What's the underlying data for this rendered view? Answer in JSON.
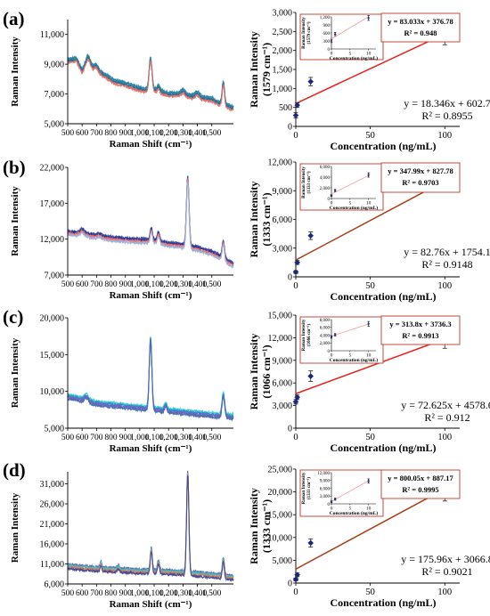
{
  "panels": [
    {
      "id": "(a)"
    },
    {
      "id": "(b)"
    },
    {
      "id": "(c)"
    },
    {
      "id": "(d)"
    }
  ],
  "colors": {
    "line_ac": "#e8231d",
    "line_bd": "#a6401a",
    "inset_line": "#f0a8a8",
    "inset_box": "#c0392b",
    "marker": "#1a2a7a",
    "spectra_a": [
      "#2a8a9e",
      "#3a7fb5",
      "#1f6f8f",
      "#e8716b"
    ],
    "spectra_b": [
      "#3b4ea8",
      "#2a3590",
      "#ef6e6a",
      "#9fb0d6"
    ],
    "spectra_c": [
      "#3fd3c8",
      "#2a8fd8",
      "#7b5fc0",
      "#4b6fb0"
    ],
    "spectra_d": [
      "#5e6fb0",
      "#3fc0c0",
      "#d08060",
      "#4b4b90"
    ]
  },
  "chart_data": [
    {
      "panel": "(a)",
      "type": "line",
      "xlabel": "Raman Shift (cm⁻¹)",
      "ylabel": "Raman Intensity",
      "xlim": [
        500,
        1650
      ],
      "ylim": [
        5000,
        12000
      ],
      "xticks": [
        "500",
        "600",
        "700",
        "800",
        "900",
        "1,000",
        "1,100",
        "1,200",
        "1,300",
        "1,400",
        "1,500"
      ],
      "yticks": [
        "5,000",
        "7,000",
        "9,000",
        "11,000"
      ],
      "base": [
        [
          500,
          9200
        ],
        [
          560,
          9300
        ],
        [
          600,
          8500
        ],
        [
          640,
          9050
        ],
        [
          700,
          8500
        ],
        [
          760,
          8200
        ],
        [
          820,
          7800
        ],
        [
          900,
          7600
        ],
        [
          1000,
          7300
        ],
        [
          1050,
          7200
        ],
        [
          1100,
          7200
        ],
        [
          1200,
          6950
        ],
        [
          1300,
          6900
        ],
        [
          1400,
          6700
        ],
        [
          1500,
          6600
        ],
        [
          1560,
          6300
        ],
        [
          1650,
          6000
        ]
      ],
      "peaks": [
        [
          1075,
          2100,
          10
        ],
        [
          1580,
          1500,
          8
        ],
        [
          1130,
          300,
          10
        ],
        [
          1300,
          250,
          15
        ],
        [
          1400,
          300,
          15
        ],
        [
          640,
          400,
          15
        ],
        [
          700,
          350,
          12
        ]
      ]
    },
    {
      "panel": "(a)",
      "type": "scatter",
      "xlabel": "Concentration (ng/mL)",
      "ylabel": "Raman Intensity (1579 cm⁻¹)",
      "xlim": [
        0,
        110
      ],
      "ylim": [
        0,
        3000
      ],
      "xticks": [
        "0",
        "50",
        "100"
      ],
      "yticks": [
        "0",
        "500",
        "1,000",
        "1,500",
        "2,000",
        "2,500",
        "3,000"
      ],
      "points": [
        [
          0,
          290
        ],
        [
          1,
          560
        ],
        [
          10,
          1180
        ],
        [
          100,
          2430
        ]
      ],
      "errors": [
        70,
        60,
        110,
        280
      ],
      "fit": {
        "slope": 18.346,
        "intercept": 602.7
      },
      "equation": "y = 18.346x + 602.7",
      "r2": "R² = 0.8955",
      "inset": {
        "xlim": [
          0,
          12
        ],
        "ylim": [
          0,
          1200
        ],
        "xticks": [
          "0",
          "5",
          "10"
        ],
        "yticks": [
          "0",
          "300",
          "600",
          "900",
          "1,200"
        ],
        "ylabel": "Raman Intensity (1579 cm⁻¹)",
        "xlabel": "Concentration (ng/mL)",
        "points": [
          [
            0,
            300
          ],
          [
            1,
            560
          ],
          [
            10,
            1160
          ]
        ],
        "errors": [
          60,
          60,
          90
        ],
        "fit": {
          "slope": 83.033,
          "intercept": 376.78
        },
        "equation": "y = 83.033x + 376.78",
        "r2": "R² = 0.948"
      }
    },
    {
      "panel": "(b)",
      "type": "line",
      "xlabel": "Raman Shift (cm⁻¹)",
      "ylabel": "Raman Intensity",
      "xlim": [
        500,
        1650
      ],
      "ylim": [
        7000,
        22000
      ],
      "xticks": [
        "500",
        "600",
        "700",
        "800",
        "900",
        "1,000",
        "1,100",
        "1,200",
        "1,300",
        "1,400",
        "1,500"
      ],
      "yticks": [
        "7,000",
        "12,000",
        "17,000",
        "22,000"
      ],
      "base": [
        [
          500,
          12800
        ],
        [
          600,
          12600
        ],
        [
          700,
          12300
        ],
        [
          800,
          12000
        ],
        [
          900,
          11800
        ],
        [
          1000,
          11700
        ],
        [
          1100,
          11600
        ],
        [
          1200,
          11200
        ],
        [
          1300,
          11000
        ],
        [
          1400,
          10600
        ],
        [
          1500,
          10000
        ],
        [
          1560,
          9400
        ],
        [
          1650,
          8300
        ]
      ],
      "peaks": [
        [
          1333,
          9500,
          9
        ],
        [
          1080,
          1600,
          8
        ],
        [
          1130,
          1200,
          8
        ],
        [
          1580,
          2300,
          8
        ],
        [
          600,
          500,
          15
        ],
        [
          720,
          300,
          12
        ]
      ]
    },
    {
      "panel": "(b)",
      "type": "scatter",
      "xlabel": "Concentration (ng/mL)",
      "ylabel": "Raman Intensity (1333 cm⁻¹)",
      "xlim": [
        0,
        110
      ],
      "ylim": [
        0,
        12000
      ],
      "xticks": [
        "0",
        "50",
        "100"
      ],
      "yticks": [
        "0",
        "3,000",
        "6,000",
        "9,000",
        "12,000"
      ],
      "points": [
        [
          0,
          500
        ],
        [
          1,
          1500
        ],
        [
          10,
          4300
        ],
        [
          100,
          9700
        ]
      ],
      "errors": [
        150,
        200,
        400,
        700
      ],
      "fit": {
        "slope": 82.76,
        "intercept": 1754.1
      },
      "equation": "y = 82.76x + 1754.1",
      "r2": "R² = 0.9148",
      "inset": {
        "xlim": [
          0,
          12
        ],
        "ylim": [
          0,
          6000
        ],
        "xticks": [
          "0",
          "5",
          "10"
        ],
        "yticks": [
          "0",
          "2,000",
          "4,000",
          "6,000"
        ],
        "ylabel": "Raman Intensity (1333 cm⁻¹)",
        "xlabel": "Concentration (ng/mL)",
        "points": [
          [
            0,
            550
          ],
          [
            1,
            1500
          ],
          [
            10,
            4400
          ]
        ],
        "errors": [
          150,
          200,
          400
        ],
        "fit": {
          "slope": 347.99,
          "intercept": 827.78
        },
        "equation": "y = 347.99x + 827.78",
        "r2": "R² = 0.9703"
      }
    },
    {
      "panel": "(c)",
      "type": "line",
      "xlabel": "Raman Shift (cm⁻¹)",
      "ylabel": "Raman Intensity",
      "xlim": [
        500,
        1650
      ],
      "ylim": [
        5000,
        20000
      ],
      "xticks": [
        "500",
        "600",
        "700",
        "800",
        "900",
        "1,000",
        "1,100",
        "1,200",
        "1,300",
        "1,400",
        "1,500"
      ],
      "yticks": [
        "5,000",
        "10,000",
        "15,000",
        "20,000"
      ],
      "base": [
        [
          500,
          9200
        ],
        [
          560,
          9000
        ],
        [
          650,
          8500
        ],
        [
          700,
          8300
        ],
        [
          800,
          8100
        ],
        [
          900,
          7900
        ],
        [
          1000,
          7700
        ],
        [
          1100,
          7500
        ],
        [
          1200,
          7300
        ],
        [
          1300,
          7100
        ],
        [
          1400,
          6900
        ],
        [
          1500,
          6700
        ],
        [
          1650,
          6500
        ]
      ],
      "peaks": [
        [
          1075,
          9500,
          9
        ],
        [
          1580,
          2900,
          9
        ],
        [
          1180,
          800,
          8
        ],
        [
          630,
          700,
          14
        ]
      ]
    },
    {
      "panel": "(c)",
      "type": "scatter",
      "xlabel": "Concentration (ng/mL)",
      "ylabel": "Raman Intensity (1066 cm⁻¹)",
      "xlim": [
        0,
        110
      ],
      "ylim": [
        0,
        15000
      ],
      "xticks": [
        "0",
        "50",
        "100"
      ],
      "yticks": [
        "0",
        "3,000",
        "6,000",
        "9,000",
        "12,000",
        "15,000"
      ],
      "points": [
        [
          0,
          3500
        ],
        [
          1,
          4100
        ],
        [
          10,
          6900
        ],
        [
          100,
          11800
        ]
      ],
      "errors": [
        300,
        300,
        700,
        1200
      ],
      "fit": {
        "slope": 72.625,
        "intercept": 4578.6
      },
      "equation": "y = 72.625x + 4578.6",
      "r2": "R² = 0.912",
      "inset": {
        "xlim": [
          0,
          12
        ],
        "ylim": [
          0,
          8000
        ],
        "xticks": [
          "0",
          "5",
          "10"
        ],
        "yticks": [
          "0",
          "2,000",
          "4,000",
          "6,000",
          "8,000"
        ],
        "ylabel": "Raman Intensity (1066 cm⁻¹)",
        "xlabel": "Concentration (ng/mL)",
        "points": [
          [
            0,
            3500
          ],
          [
            1,
            4100
          ],
          [
            10,
            6900
          ]
        ],
        "errors": [
          300,
          300,
          600
        ],
        "fit": {
          "slope": 313.8,
          "intercept": 3736.3
        },
        "equation": "y = 313.8x + 3736.3",
        "r2": "R² = 0.9913"
      }
    },
    {
      "panel": "(d)",
      "type": "line",
      "xlabel": "Raman Shift (cm⁻¹)",
      "ylabel": "Raman Intensity",
      "xlim": [
        500,
        1650
      ],
      "ylim": [
        6000,
        34000
      ],
      "xticks": [
        "500",
        "600",
        "700",
        "800",
        "900",
        "1,000",
        "1,100",
        "1,200",
        "1,300",
        "1,400",
        "1,500"
      ],
      "yticks": [
        "6,000",
        "11,000",
        "16,000",
        "21,000",
        "26,000",
        "31,000"
      ],
      "base": [
        [
          500,
          10200
        ],
        [
          600,
          9900
        ],
        [
          700,
          9600
        ],
        [
          800,
          9400
        ],
        [
          900,
          9200
        ],
        [
          1000,
          9000
        ],
        [
          1100,
          8900
        ],
        [
          1200,
          8800
        ],
        [
          1300,
          8600
        ],
        [
          1400,
          8300
        ],
        [
          1500,
          8000
        ],
        [
          1650,
          7400
        ]
      ],
      "peaks": [
        [
          1333,
          25000,
          8
        ],
        [
          1080,
          5500,
          7
        ],
        [
          1580,
          4300,
          7
        ],
        [
          1130,
          2500,
          7
        ],
        [
          730,
          1500,
          6
        ],
        [
          850,
          800,
          8
        ]
      ]
    },
    {
      "panel": "(d)",
      "type": "scatter",
      "xlabel": "Concentration (ng/mL)",
      "ylabel": "Raman Intensity (1333 cm⁻¹)",
      "xlim": [
        0,
        110
      ],
      "ylim": [
        0,
        25000
      ],
      "xticks": [
        "0",
        "50",
        "100"
      ],
      "yticks": [
        "0",
        "5,000",
        "10,000",
        "15,000",
        "20,000",
        "25,000"
      ],
      "points": [
        [
          0,
          800
        ],
        [
          1,
          1800
        ],
        [
          10,
          8800
        ],
        [
          100,
          20500
        ]
      ],
      "errors": [
        300,
        400,
        900,
        2500
      ],
      "fit": {
        "slope": 175.96,
        "intercept": 3066.8
      },
      "equation": "y = 175.96x + 3066.8",
      "r2": "R² = 0.9021",
      "inset": {
        "xlim": [
          0,
          12
        ],
        "ylim": [
          0,
          12000
        ],
        "xticks": [
          "0",
          "5",
          "10"
        ],
        "yticks": [
          "0",
          "3,000",
          "6,000",
          "9,000",
          "12,000"
        ],
        "ylabel": "Raman Intensity (1333 cm⁻¹)",
        "xlabel": "Concentration (ng/mL)",
        "points": [
          [
            0,
            800
          ],
          [
            1,
            1800
          ],
          [
            10,
            8800
          ]
        ],
        "errors": [
          300,
          400,
          800
        ],
        "fit": {
          "slope": 800.05,
          "intercept": 887.17
        },
        "equation": "y = 800.05x + 887.17",
        "r2": "R² = 0.9995"
      }
    }
  ]
}
